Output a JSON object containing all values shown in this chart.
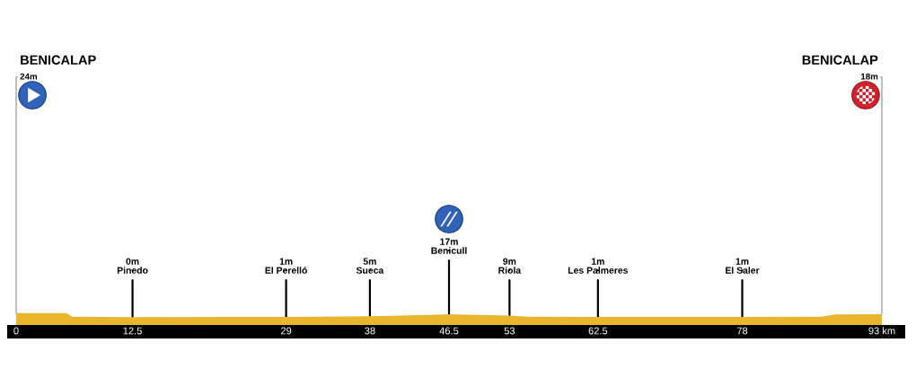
{
  "chart_data": {
    "type": "area",
    "color": "#e9b52c",
    "x": [
      0,
      5.4,
      6,
      12.5,
      29,
      38,
      44.5,
      46.5,
      53,
      55,
      62.5,
      78,
      86.5,
      88,
      93
    ],
    "values": [
      24,
      24,
      2,
      0,
      1,
      5,
      14,
      17,
      9,
      2,
      1,
      1,
      2,
      16,
      18
    ],
    "value_labels": [
      "24m",
      null,
      null,
      "0m",
      "1m",
      "5m",
      null,
      "17m",
      "9m",
      null,
      "1m",
      "1m",
      null,
      null,
      "18m"
    ],
    "annotations": [
      "BENICALAP",
      "Pinedo",
      "El Perelló",
      "Sueca",
      "Benicull",
      "Riola",
      "Les Palmeres",
      "El Saler",
      "BENICALAP"
    ],
    "xlim": [
      0,
      93
    ],
    "xticks": [
      0,
      12.5,
      29,
      38,
      46.5,
      53,
      62.5,
      78,
      {
        "value": 93,
        "label": "93 km"
      }
    ],
    "tick_labels": "x"
  }
}
